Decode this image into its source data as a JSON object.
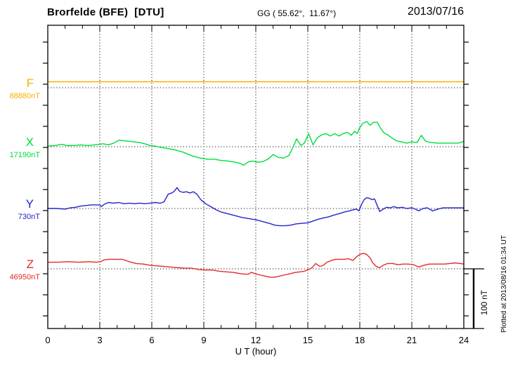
{
  "header": {
    "station": "Brorfelde (BFE)  [DTU]",
    "coords": "GG ( 55.62°,  11.67°)",
    "date": "2013/07/16"
  },
  "axis": {
    "x_label": "U T (hour)",
    "x_ticks": [
      "0",
      "3",
      "6",
      "9",
      "12",
      "15",
      "18",
      "21",
      "24"
    ]
  },
  "scale_bar": {
    "label": "100 nT",
    "value_nT": 100
  },
  "footer_note": "Plotted at 2013/08/16 01:34 UT",
  "chart_data": {
    "type": "line",
    "title": "Brorfelde (BFE) [DTU] magnetogram 2013/07/16",
    "xlabel": "U T (hour)",
    "x_range": [
      0,
      24
    ],
    "grid": "dotted verticals every 3 hours; dotted horizontal baseline per component",
    "amplitude_scale_nT_per_div": 100,
    "series": [
      {
        "id": "F",
        "label": "F",
        "base_label": "88880nT",
        "base_value": 88880,
        "color": "#fbaf00",
        "points": [
          [
            0,
            88890
          ],
          [
            6,
            88890
          ],
          [
            12,
            88890
          ],
          [
            18,
            88890
          ],
          [
            24,
            88890
          ]
        ]
      },
      {
        "id": "X",
        "label": "X",
        "base_label": "17190nT",
        "base_value": 17190,
        "color": "#00dd3c",
        "points": [
          [
            0,
            17191
          ],
          [
            0.4,
            17192
          ],
          [
            0.8,
            17194
          ],
          [
            1.1,
            17192
          ],
          [
            1.5,
            17192
          ],
          [
            1.9,
            17193
          ],
          [
            2.3,
            17192
          ],
          [
            2.7,
            17193
          ],
          [
            3.0,
            17194
          ],
          [
            3.2,
            17195
          ],
          [
            3.5,
            17193
          ],
          [
            3.8,
            17196
          ],
          [
            4.1,
            17201
          ],
          [
            4.4,
            17200
          ],
          [
            4.7,
            17199
          ],
          [
            5.0,
            17198
          ],
          [
            5.3,
            17197
          ],
          [
            5.6,
            17195
          ],
          [
            5.9,
            17192
          ],
          [
            6.2,
            17191
          ],
          [
            6.5,
            17189
          ],
          [
            6.9,
            17187
          ],
          [
            7.3,
            17185
          ],
          [
            7.8,
            17181
          ],
          [
            8.3,
            17175
          ],
          [
            8.8,
            17171
          ],
          [
            9.2,
            17169
          ],
          [
            9.6,
            17169
          ],
          [
            10.0,
            17167
          ],
          [
            10.4,
            17166
          ],
          [
            10.8,
            17164
          ],
          [
            11.1,
            17162
          ],
          [
            11.3,
            17159
          ],
          [
            11.6,
            17165
          ],
          [
            11.8,
            17166
          ],
          [
            12.1,
            17164
          ],
          [
            12.4,
            17165
          ],
          [
            12.7,
            17169
          ],
          [
            13.0,
            17177
          ],
          [
            13.3,
            17172
          ],
          [
            13.6,
            17171
          ],
          [
            13.9,
            17175
          ],
          [
            14.15,
            17189
          ],
          [
            14.35,
            17203
          ],
          [
            14.6,
            17192
          ],
          [
            14.8,
            17196
          ],
          [
            15.05,
            17212
          ],
          [
            15.3,
            17193
          ],
          [
            15.55,
            17205
          ],
          [
            15.8,
            17210
          ],
          [
            16.05,
            17212
          ],
          [
            16.3,
            17208
          ],
          [
            16.55,
            17212
          ],
          [
            16.8,
            17208
          ],
          [
            17.05,
            17212
          ],
          [
            17.3,
            17214
          ],
          [
            17.5,
            17209
          ],
          [
            17.7,
            17216
          ],
          [
            17.85,
            17212
          ],
          [
            18.0,
            17222
          ],
          [
            18.2,
            17230
          ],
          [
            18.4,
            17232
          ],
          [
            18.6,
            17226
          ],
          [
            18.8,
            17231
          ],
          [
            19.0,
            17231
          ],
          [
            19.2,
            17221
          ],
          [
            19.4,
            17213
          ],
          [
            19.6,
            17210
          ],
          [
            19.85,
            17205
          ],
          [
            20.1,
            17200
          ],
          [
            20.4,
            17198
          ],
          [
            20.7,
            17196
          ],
          [
            21.0,
            17198
          ],
          [
            21.3,
            17197
          ],
          [
            21.55,
            17209
          ],
          [
            21.8,
            17199
          ],
          [
            22.1,
            17197
          ],
          [
            22.5,
            17196
          ],
          [
            22.9,
            17196
          ],
          [
            23.3,
            17196
          ],
          [
            23.7,
            17196
          ],
          [
            24.0,
            17199
          ]
        ]
      },
      {
        "id": "Y",
        "label": "Y",
        "base_label": "730nT",
        "base_value": 730,
        "color": "#2323cc",
        "points": [
          [
            0,
            730
          ],
          [
            0.5,
            730
          ],
          [
            1.0,
            729
          ],
          [
            1.3,
            731
          ],
          [
            1.6,
            732
          ],
          [
            1.9,
            734
          ],
          [
            2.2,
            735
          ],
          [
            2.5,
            736
          ],
          [
            2.8,
            736
          ],
          [
            3.0,
            736
          ],
          [
            3.1,
            733
          ],
          [
            3.25,
            737
          ],
          [
            3.5,
            740
          ],
          [
            3.8,
            739
          ],
          [
            4.1,
            740
          ],
          [
            4.4,
            738
          ],
          [
            4.7,
            739
          ],
          [
            5.0,
            738
          ],
          [
            5.3,
            739
          ],
          [
            5.6,
            738
          ],
          [
            5.9,
            739
          ],
          [
            6.2,
            740
          ],
          [
            6.5,
            739
          ],
          [
            6.7,
            741
          ],
          [
            6.95,
            754
          ],
          [
            7.15,
            756
          ],
          [
            7.3,
            759
          ],
          [
            7.45,
            765
          ],
          [
            7.6,
            759
          ],
          [
            7.8,
            757
          ],
          [
            8.0,
            758
          ],
          [
            8.2,
            756
          ],
          [
            8.4,
            758
          ],
          [
            8.6,
            754
          ],
          [
            8.85,
            744
          ],
          [
            9.1,
            738
          ],
          [
            9.4,
            733
          ],
          [
            9.7,
            728
          ],
          [
            10.0,
            724
          ],
          [
            10.4,
            721
          ],
          [
            10.8,
            718
          ],
          [
            11.2,
            715
          ],
          [
            11.6,
            713
          ],
          [
            12.0,
            711
          ],
          [
            12.4,
            708
          ],
          [
            12.8,
            705
          ],
          [
            13.1,
            702
          ],
          [
            13.4,
            701
          ],
          [
            13.7,
            701
          ],
          [
            14.0,
            702
          ],
          [
            14.3,
            704
          ],
          [
            14.6,
            705
          ],
          [
            15.0,
            706
          ],
          [
            15.3,
            709
          ],
          [
            15.6,
            712
          ],
          [
            15.9,
            714
          ],
          [
            16.2,
            716
          ],
          [
            16.5,
            719
          ],
          [
            16.8,
            721
          ],
          [
            17.1,
            724
          ],
          [
            17.4,
            726
          ],
          [
            17.65,
            728
          ],
          [
            17.8,
            729
          ],
          [
            17.95,
            726
          ],
          [
            18.1,
            737
          ],
          [
            18.25,
            745
          ],
          [
            18.4,
            748
          ],
          [
            18.55,
            747
          ],
          [
            18.7,
            745
          ],
          [
            18.85,
            746
          ],
          [
            19.0,
            735
          ],
          [
            19.15,
            725
          ],
          [
            19.35,
            729
          ],
          [
            19.55,
            732
          ],
          [
            19.75,
            731
          ],
          [
            19.95,
            733
          ],
          [
            20.2,
            731
          ],
          [
            20.45,
            732
          ],
          [
            20.7,
            730
          ],
          [
            21.0,
            731
          ],
          [
            21.2,
            729
          ],
          [
            21.4,
            726
          ],
          [
            21.65,
            730
          ],
          [
            21.9,
            731
          ],
          [
            22.2,
            726
          ],
          [
            22.5,
            729
          ],
          [
            22.8,
            731
          ],
          [
            23.1,
            731
          ],
          [
            23.5,
            731
          ],
          [
            24.0,
            731
          ]
        ]
      },
      {
        "id": "Z",
        "label": "Z",
        "base_label": "46950nT",
        "base_value": 46950,
        "color": "#e62828",
        "points": [
          [
            0,
            46961
          ],
          [
            0.6,
            46961
          ],
          [
            1.2,
            46962
          ],
          [
            1.8,
            46961
          ],
          [
            2.4,
            46962
          ],
          [
            2.8,
            46961
          ],
          [
            3.05,
            46962
          ],
          [
            3.25,
            46965
          ],
          [
            3.5,
            46966
          ],
          [
            3.8,
            46966
          ],
          [
            4.1,
            46966
          ],
          [
            4.3,
            46966
          ],
          [
            4.5,
            46964
          ],
          [
            4.8,
            46961
          ],
          [
            5.1,
            46959
          ],
          [
            5.5,
            46958
          ],
          [
            5.9,
            46956
          ],
          [
            6.3,
            46955
          ],
          [
            6.7,
            46954
          ],
          [
            7.1,
            46953
          ],
          [
            7.5,
            46952
          ],
          [
            7.9,
            46951
          ],
          [
            8.3,
            46951
          ],
          [
            8.7,
            46949
          ],
          [
            9.1,
            46948
          ],
          [
            9.5,
            46948
          ],
          [
            9.9,
            46946
          ],
          [
            10.3,
            46945
          ],
          [
            10.7,
            46944
          ],
          [
            11.1,
            46942
          ],
          [
            11.35,
            46941
          ],
          [
            11.55,
            46941
          ],
          [
            11.75,
            46944
          ],
          [
            11.95,
            46942
          ],
          [
            12.2,
            46940
          ],
          [
            12.5,
            46938
          ],
          [
            12.8,
            46936
          ],
          [
            13.1,
            46936
          ],
          [
            13.4,
            46938
          ],
          [
            13.7,
            46940
          ],
          [
            14.0,
            46942
          ],
          [
            14.3,
            46944
          ],
          [
            14.55,
            46945
          ],
          [
            14.8,
            46946
          ],
          [
            15.05,
            46949
          ],
          [
            15.25,
            46952
          ],
          [
            15.45,
            46959
          ],
          [
            15.7,
            46954
          ],
          [
            15.9,
            46956
          ],
          [
            16.1,
            46961
          ],
          [
            16.35,
            46964
          ],
          [
            16.6,
            46966
          ],
          [
            16.85,
            46966
          ],
          [
            17.1,
            46966
          ],
          [
            17.35,
            46967
          ],
          [
            17.6,
            46964
          ],
          [
            17.8,
            46970
          ],
          [
            18.0,
            46974
          ],
          [
            18.2,
            46976
          ],
          [
            18.4,
            46974
          ],
          [
            18.6,
            46968
          ],
          [
            18.75,
            46960
          ],
          [
            18.95,
            46954
          ],
          [
            19.15,
            46952
          ],
          [
            19.35,
            46956
          ],
          [
            19.6,
            46959
          ],
          [
            19.9,
            46959
          ],
          [
            20.2,
            46957
          ],
          [
            20.5,
            46958
          ],
          [
            20.8,
            46958
          ],
          [
            21.1,
            46957
          ],
          [
            21.4,
            46953
          ],
          [
            21.7,
            46956
          ],
          [
            22.0,
            46958
          ],
          [
            22.3,
            46958
          ],
          [
            22.6,
            46958
          ],
          [
            22.9,
            46958
          ],
          [
            23.2,
            46959
          ],
          [
            23.5,
            46960
          ],
          [
            23.8,
            46959
          ],
          [
            24.0,
            46958
          ]
        ]
      }
    ]
  }
}
